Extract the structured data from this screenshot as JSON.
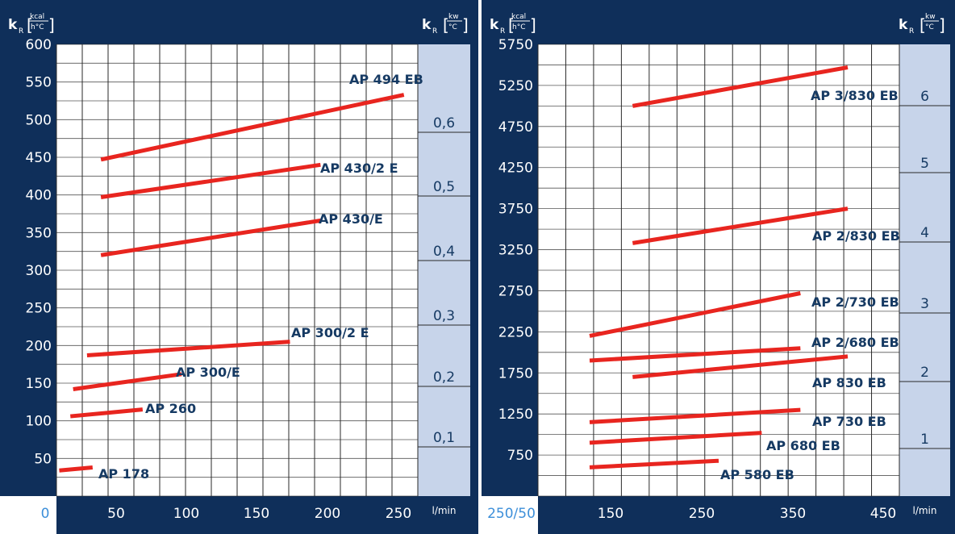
{
  "charts": {
    "chart_data": [
      {
        "type": "line",
        "header_left_symbol": "k",
        "header_left_sub": "R",
        "header_left_unit_num": "kcal",
        "header_left_unit_den": "h°C",
        "header_right_symbol": "k",
        "header_right_sub": "R",
        "header_right_unit_num": "kw",
        "header_right_unit_den": "°C",
        "xlabel": "l/min",
        "x_ticks": [
          "0",
          "50",
          "100",
          "150",
          "200",
          "250"
        ],
        "y_ticks": [
          "50",
          "100",
          "150",
          "200",
          "250",
          "300",
          "350",
          "400",
          "450",
          "500",
          "550",
          "600"
        ],
        "y2_ticks": [
          "0,1",
          "0,2",
          "0,3",
          "0,4",
          "0,5",
          "0,6"
        ],
        "xlim": [
          0,
          260
        ],
        "ylim": [
          0,
          600
        ],
        "series": [
          {
            "name": "AP 494 EB",
            "x": [
              32,
              250
            ],
            "y": [
              447,
              533
            ]
          },
          {
            "name": "AP 430/2 E",
            "x": [
              32,
              190
            ],
            "y": [
              397,
              440
            ]
          },
          {
            "name": "AP 430/E",
            "x": [
              32,
              190
            ],
            "y": [
              320,
              366
            ]
          },
          {
            "name": "AP 300/2 E",
            "x": [
              22,
              168
            ],
            "y": [
              187,
              205
            ]
          },
          {
            "name": "AP 300/E",
            "x": [
              12,
              90
            ],
            "y": [
              142,
              162
            ]
          },
          {
            "name": "AP 260",
            "x": [
              10,
              62
            ],
            "y": [
              106,
              115
            ]
          },
          {
            "name": "AP 178",
            "x": [
              2,
              26
            ],
            "y": [
              34,
              38
            ]
          }
        ]
      },
      {
        "type": "line",
        "header_left_symbol": "k",
        "header_left_sub": "R",
        "header_left_unit_num": "kcal",
        "header_left_unit_den": "h°C",
        "header_right_symbol": "k",
        "header_right_sub": "R",
        "header_right_unit_num": "kw",
        "header_right_unit_den": "°C",
        "xlabel": "l/min",
        "x_origin_label": "250/50",
        "x_ticks": [
          "150",
          "250",
          "350",
          "450"
        ],
        "y_ticks": [
          "750",
          "1250",
          "1750",
          "2250",
          "2750",
          "3250",
          "3750",
          "4250",
          "4750",
          "5250",
          "5750"
        ],
        "y2_ticks": [
          "1",
          "2",
          "3",
          "4",
          "5",
          "6"
        ],
        "xlim": [
          50,
          470
        ],
        "ylim": [
          250,
          5750
        ],
        "series": [
          {
            "name": "AP 3/830 EB",
            "x": [
              160,
              410
            ],
            "y": [
              5000,
              5470
            ]
          },
          {
            "name": "AP 2/830 EB",
            "x": [
              160,
              410
            ],
            "y": [
              3330,
              3750
            ]
          },
          {
            "name": "AP 2/730 EB",
            "x": [
              110,
              355
            ],
            "y": [
              2200,
              2720
            ]
          },
          {
            "name": "AP 2/680 EB",
            "x": [
              110,
              355
            ],
            "y": [
              1900,
              2050
            ]
          },
          {
            "name": "AP 830 EB",
            "x": [
              160,
              410
            ],
            "y": [
              1700,
              1950
            ]
          },
          {
            "name": "AP 730 EB",
            "x": [
              110,
              355
            ],
            "y": [
              1150,
              1300
            ]
          },
          {
            "name": "AP 680 EB",
            "x": [
              110,
              310
            ],
            "y": [
              900,
              1020
            ]
          },
          {
            "name": "AP 580 EB",
            "x": [
              110,
              260
            ],
            "y": [
              600,
              680
            ]
          }
        ]
      }
    ],
    "colors": {
      "frame": "#0f2f5a",
      "plot_bg": "#ffffff",
      "right_band": "#c7d4ea",
      "grid": "#2a2a2a",
      "series_line": "#e8251f",
      "tick_text": "#ffffff",
      "origin_text": "#3d8fd9",
      "right_tick_text": "#163a63"
    }
  }
}
